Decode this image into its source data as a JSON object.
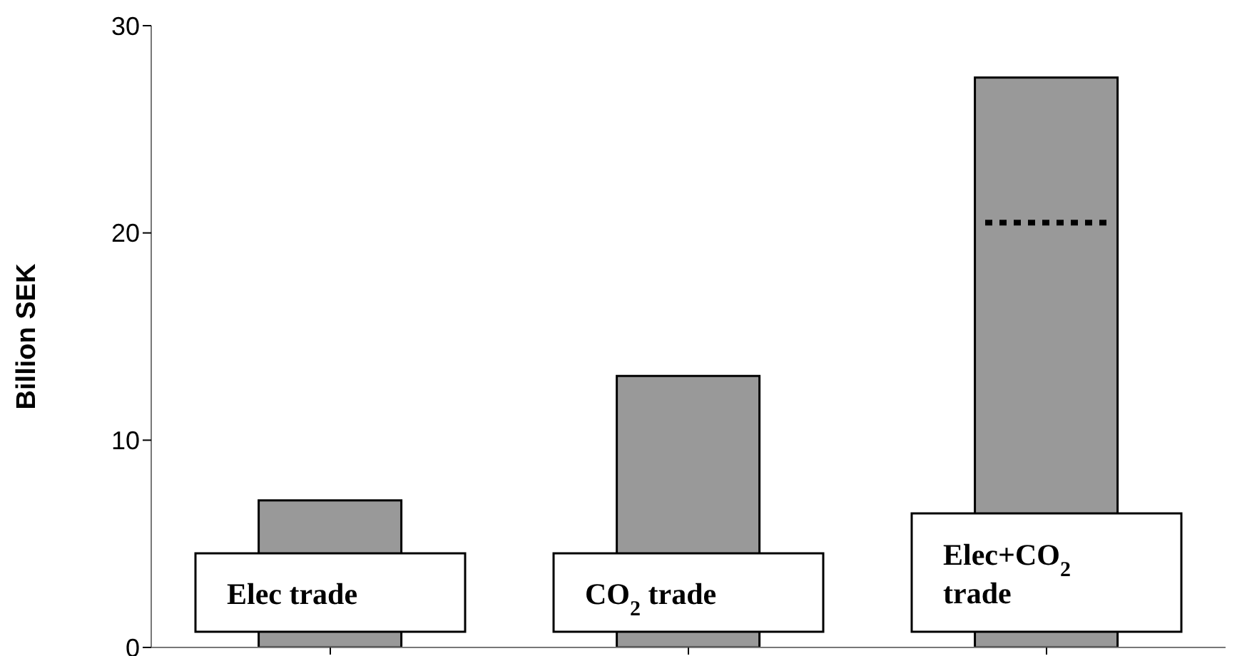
{
  "chart_data": {
    "type": "bar",
    "ylabel": "Billion SEK",
    "categories": [
      "Elec trade",
      "CO$_{2}$ trade",
      "Elec+CO$_{2}$ trade"
    ],
    "values": [
      7.1,
      13.1,
      27.5
    ],
    "color": "#999999",
    "ylim": [
      0,
      30
    ],
    "yticks": [
      0,
      10,
      20,
      30
    ],
    "grid": false,
    "ref_lines": [
      {
        "axis": "y",
        "value": 20.5,
        "color": "#000000",
        "line_style": "dotted"
      }
    ]
  }
}
